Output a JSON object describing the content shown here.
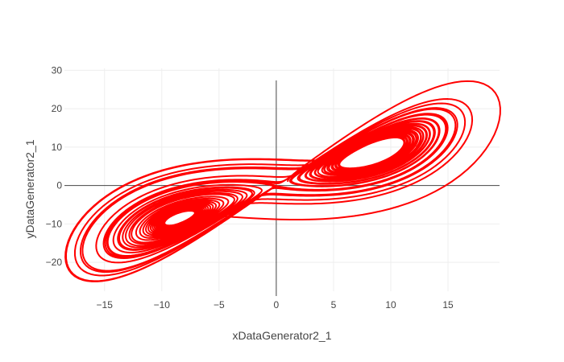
{
  "chart_data": {
    "type": "line",
    "xlabel": "xDataGenerator2_1",
    "ylabel": "yDataGenerator2_1",
    "xlim": [
      -18.5,
      19.5
    ],
    "ylim": [
      -27.5,
      30.5
    ],
    "x_ticks": [
      -15,
      -10,
      -5,
      0,
      5,
      10,
      15
    ],
    "y_ticks": [
      -20,
      -10,
      0,
      10,
      20,
      30
    ],
    "grid": true,
    "zero_lines": true,
    "legend": "none",
    "series": [
      {
        "kind": "lorenz-attractor-trajectory",
        "color": "#ff0000",
        "sigma": 10,
        "rho": 28,
        "beta": 2.6667,
        "initial": [
          1,
          1,
          1
        ],
        "dt": 0.005,
        "steps": 9000
      }
    ]
  }
}
